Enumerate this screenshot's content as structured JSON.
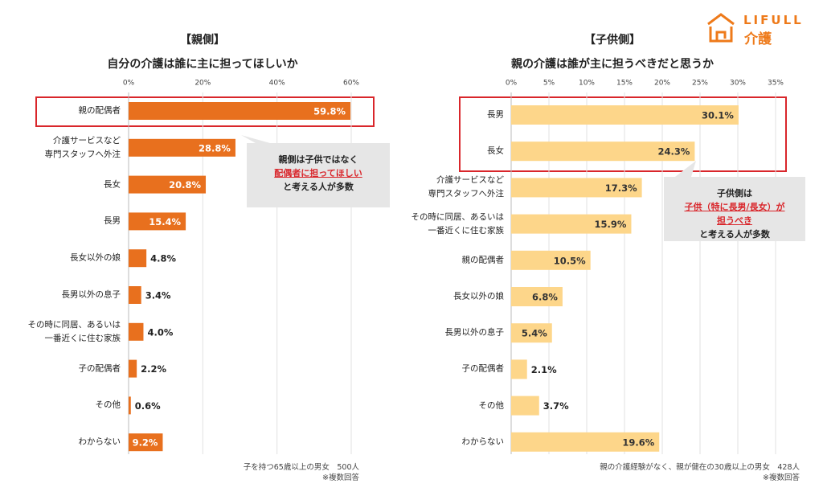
{
  "logo": {
    "brand": "LIFULL",
    "service": "介護"
  },
  "chart_data": [
    {
      "type": "hbar",
      "title": "【親側】",
      "subtitle": "自分の介護は誰に主に担ってほしいか",
      "categories": [
        "親の配偶者",
        "介護サービスなど\n専門スタッフへ外注",
        "長女",
        "長男",
        "長女以外の娘",
        "長男以外の息子",
        "その時に同居、あるいは\n一番近くに住む家族",
        "子の配偶者",
        "その他",
        "わからない"
      ],
      "values": [
        59.8,
        28.8,
        20.8,
        15.4,
        4.8,
        3.4,
        4.0,
        2.2,
        0.6,
        9.2
      ],
      "value_labels": [
        "59.8%",
        "28.8%",
        "20.8%",
        "15.4%",
        "4.8%",
        "3.4%",
        "4.0%",
        "2.2%",
        "0.6%",
        "9.2%"
      ],
      "color": "#e8701e",
      "grid": true,
      "xlim": [
        0,
        60
      ],
      "xticks": [
        {
          "value": 0,
          "label": "0%"
        },
        {
          "value": 20,
          "label": "20%"
        },
        {
          "value": 40,
          "label": "40%"
        },
        {
          "value": 60,
          "label": "60%"
        }
      ],
      "callout": [
        "親側は子供ではなく",
        "配偶者に担ってほしい",
        "と考える人が多数"
      ],
      "notes": [
        "子を持つ65歳以上の男女　500人",
        "※複数回答"
      ]
    },
    {
      "type": "hbar",
      "title": "【子供側】",
      "subtitle": "親の介護は誰が主に担うべきだと思うか",
      "categories": [
        "長男",
        "長女",
        "介護サービスなど\n専門スタッフへ外注",
        "その時に同居、あるいは\n一番近くに住む家族",
        "親の配偶者",
        "長女以外の娘",
        "長男以外の息子",
        "子の配偶者",
        "その他",
        "わからない"
      ],
      "values": [
        30.1,
        24.3,
        17.3,
        15.9,
        10.5,
        6.8,
        5.4,
        2.1,
        3.7,
        19.6
      ],
      "value_labels": [
        "30.1%",
        "24.3%",
        "17.3%",
        "15.9%",
        "10.5%",
        "6.8%",
        "5.4%",
        "2.1%",
        "3.7%",
        "19.6%"
      ],
      "color": "#fdd68a",
      "grid": true,
      "xlim": [
        0,
        35
      ],
      "xticks": [
        {
          "value": 0,
          "label": "0%"
        },
        {
          "value": 5,
          "label": "5%"
        },
        {
          "value": 10,
          "label": "10%"
        },
        {
          "value": 15,
          "label": "15%"
        },
        {
          "value": 20,
          "label": "20%"
        },
        {
          "value": 25,
          "label": "25%"
        },
        {
          "value": 30,
          "label": "30%"
        },
        {
          "value": 35,
          "label": "35%"
        }
      ],
      "callout": [
        "子供側は",
        "子供（特に長男/長女）が",
        "担うべき",
        "と考える人が多数"
      ],
      "notes": [
        "親の介護経験がなく、親が健在の30歳以上の男女　428人",
        "※複数回答"
      ]
    }
  ]
}
